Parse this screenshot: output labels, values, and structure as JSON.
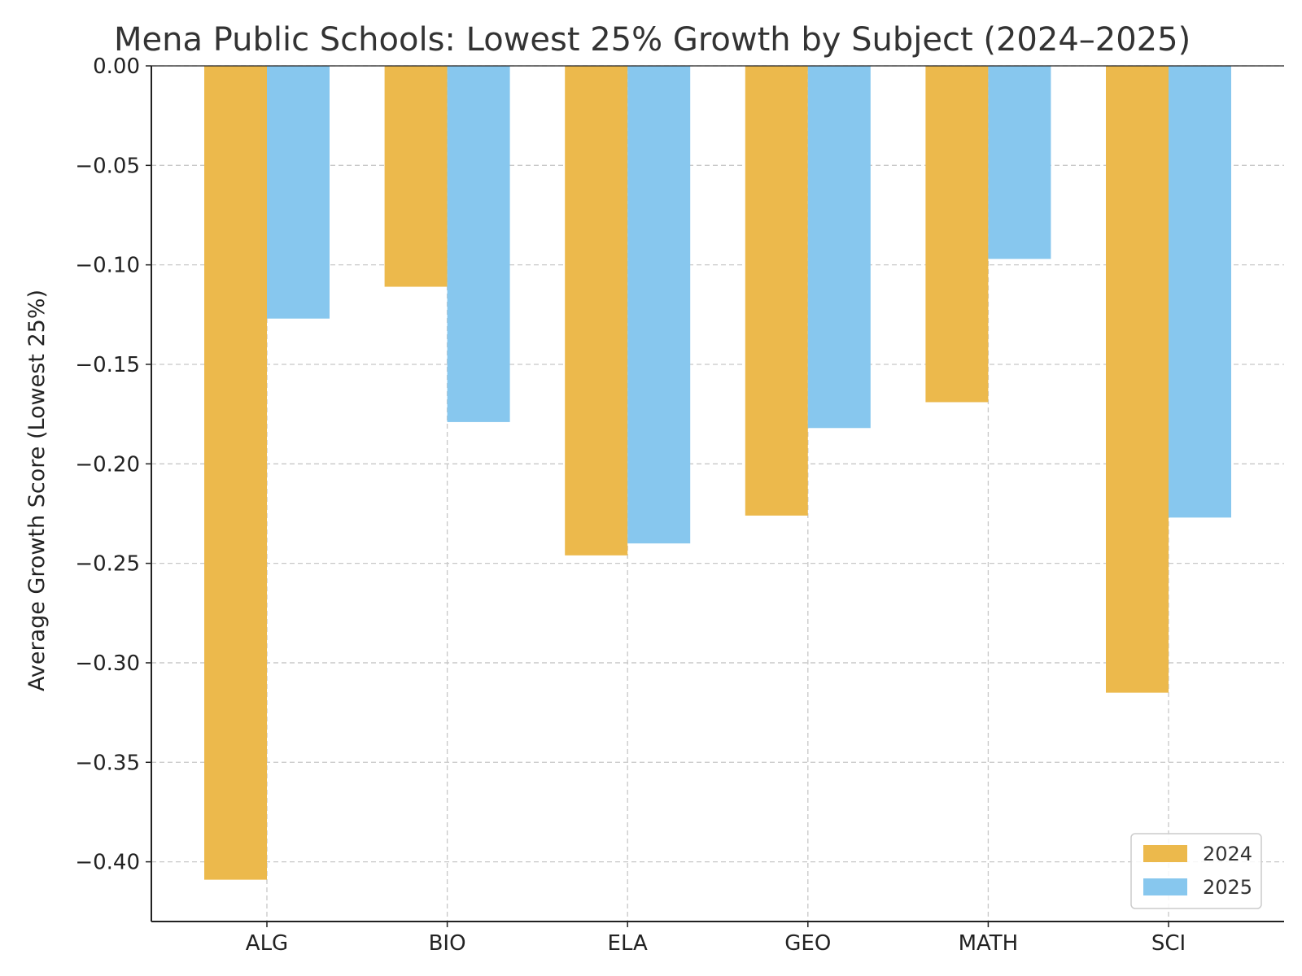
{
  "chart_data": {
    "type": "bar",
    "title": "Mena Public Schools: Lowest 25% Growth by Subject (2024–2025)",
    "xlabel": "",
    "ylabel": "Average Growth Score (Lowest 25%)",
    "categories": [
      "ALG",
      "BIO",
      "ELA",
      "GEO",
      "MATH",
      "SCI"
    ],
    "series": [
      {
        "name": "2024",
        "color": "#ECB94C",
        "values": [
          -0.409,
          -0.111,
          -0.246,
          -0.226,
          -0.169,
          -0.315
        ]
      },
      {
        "name": "2025",
        "color": "#87C7EE",
        "values": [
          -0.127,
          -0.179,
          -0.24,
          -0.182,
          -0.097,
          -0.227
        ]
      }
    ],
    "ylim": [
      -0.43,
      0.0
    ],
    "yticks": [
      0.0,
      -0.05,
      -0.1,
      -0.15,
      -0.2,
      -0.25,
      -0.3,
      -0.35,
      -0.4
    ],
    "ytick_labels": [
      "0.00",
      "−0.05",
      "−0.10",
      "−0.15",
      "−0.20",
      "−0.25",
      "−0.30",
      "−0.35",
      "−0.40"
    ],
    "grid": true,
    "legend_position": "bottom-right"
  }
}
